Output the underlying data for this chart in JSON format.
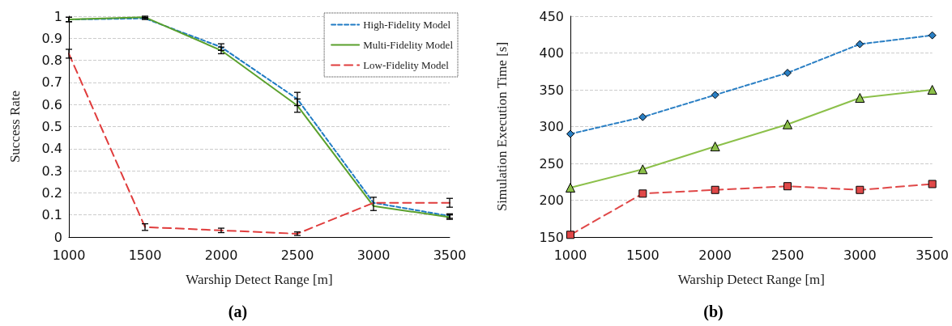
{
  "chart_data": [
    {
      "type": "line",
      "xlabel": "Warship Detect Range [m]",
      "ylabel": "Success Rate",
      "annotations": [
        "(a)"
      ],
      "x": [
        1000,
        1500,
        2000,
        2500,
        3000,
        3500
      ],
      "xlim": [
        1000,
        3500
      ],
      "xticks": [
        1000,
        1500,
        2000,
        2500,
        3000,
        3500
      ],
      "ylim": [
        0,
        1
      ],
      "yticks": [
        0,
        0.1,
        0.2,
        0.3,
        0.4,
        0.5,
        0.6,
        0.7,
        0.8,
        0.9,
        1
      ],
      "grid": "y",
      "legend": "top right",
      "marker": "none",
      "series": [
        {
          "name": "High-Fidelity Model",
          "color": "#1f7bc4",
          "line_style": "dashed",
          "values": [
            0.985,
            0.99,
            0.86,
            0.625,
            0.155,
            0.095
          ],
          "errors": [
            0.01,
            0.005,
            0.015,
            0.03,
            null,
            0.01
          ]
        },
        {
          "name": "Multi-Fidelity Model",
          "color": "#5aa02c",
          "line_style": "solid",
          "values": [
            0.985,
            0.995,
            0.845,
            0.595,
            0.14,
            0.09
          ],
          "errors": [
            0.01,
            0.005,
            0.015,
            0.03,
            [
              0.12,
              0.18
            ],
            0.01
          ]
        },
        {
          "name": "Low-Fidelity Model",
          "color": "#e03c3c",
          "line_style": "dashed",
          "values": [
            0.83,
            0.045,
            0.03,
            0.015,
            0.155,
            0.155
          ],
          "errors": [
            0.02,
            0.015,
            0.01,
            0.008,
            null,
            0.02
          ]
        }
      ]
    },
    {
      "type": "line",
      "xlabel": "Warship Detect Range [m]",
      "ylabel": "Simulation Execution Time [s]",
      "annotations": [
        "(b)"
      ],
      "x": [
        1000,
        1500,
        2000,
        2500,
        3000,
        3500
      ],
      "xlim": [
        1000,
        3500
      ],
      "xticks": [
        1000,
        1500,
        2000,
        2500,
        3000,
        3500
      ],
      "ylim": [
        150,
        450
      ],
      "yticks": [
        150,
        200,
        250,
        300,
        350,
        400,
        450
      ],
      "grid": "y",
      "series": [
        {
          "color": "#2a7fc4",
          "line_style": "dashed",
          "marker": "diamond",
          "values": [
            290,
            313,
            343,
            373,
            412,
            424
          ]
        },
        {
          "color": "#8cc04a",
          "line_style": "solid",
          "marker": "triangle",
          "values": [
            217,
            242,
            273,
            303,
            339,
            350
          ]
        },
        {
          "color": "#e04848",
          "line_style": "dashed",
          "marker": "square",
          "values": [
            153,
            209,
            214,
            219,
            214,
            222
          ]
        }
      ]
    }
  ]
}
